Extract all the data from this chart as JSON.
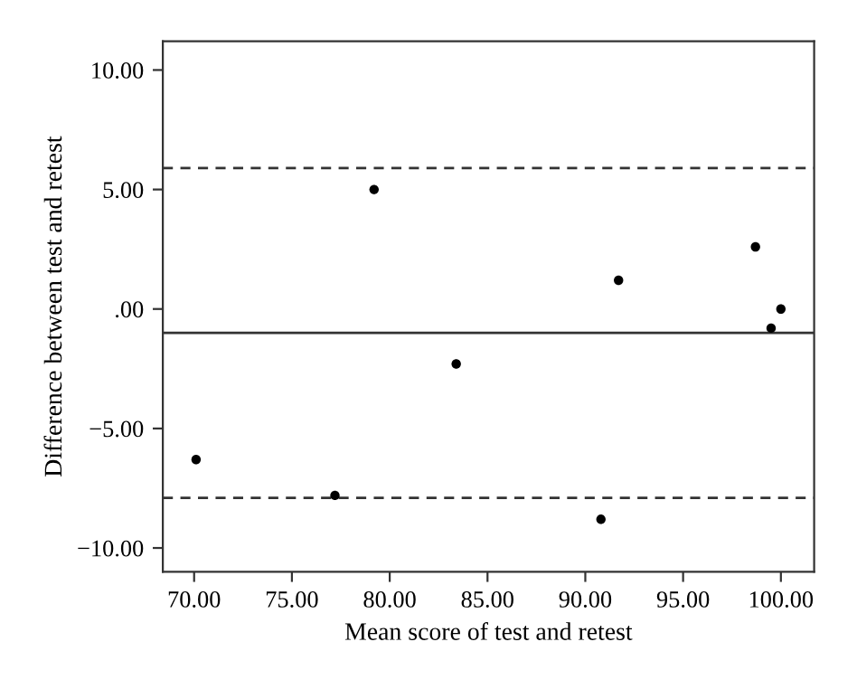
{
  "chart_data": {
    "type": "scatter",
    "xlabel": "Mean score of test and retest",
    "ylabel": "Difference between test and retest",
    "x": [
      70.1,
      77.2,
      79.2,
      83.4,
      90.8,
      91.7,
      98.7,
      99.5,
      100.0
    ],
    "values": [
      -6.3,
      -7.8,
      5.0,
      -2.3,
      -8.8,
      1.2,
      2.6,
      -0.8,
      0.0
    ],
    "color": "#000000",
    "marker": "circle",
    "xlim": [
      68.4,
      101.7
    ],
    "ylim": [
      -11.0,
      11.2
    ],
    "xticks": [
      {
        "value": 70,
        "label": "70.00"
      },
      {
        "value": 75,
        "label": "75.00"
      },
      {
        "value": 80,
        "label": "80.00"
      },
      {
        "value": 85,
        "label": "85.00"
      },
      {
        "value": 90,
        "label": "90.00"
      },
      {
        "value": 95,
        "label": "95.00"
      },
      {
        "value": 100,
        "label": "100.00"
      }
    ],
    "yticks": [
      {
        "value": -10,
        "label": "−10.00"
      },
      {
        "value": -5,
        "label": "−5.00"
      },
      {
        "value": 0,
        "label": ".00"
      },
      {
        "value": 5,
        "label": "5.00"
      },
      {
        "value": 10,
        "label": "10.00"
      }
    ],
    "ref_lines": [
      {
        "axis": "y",
        "value": 5.9,
        "line_style": "dashed"
      },
      {
        "axis": "y",
        "value": -1.0,
        "line_style": "solid"
      },
      {
        "axis": "y",
        "value": -7.9,
        "line_style": "dashed"
      }
    ],
    "grid": false,
    "legend": false
  }
}
